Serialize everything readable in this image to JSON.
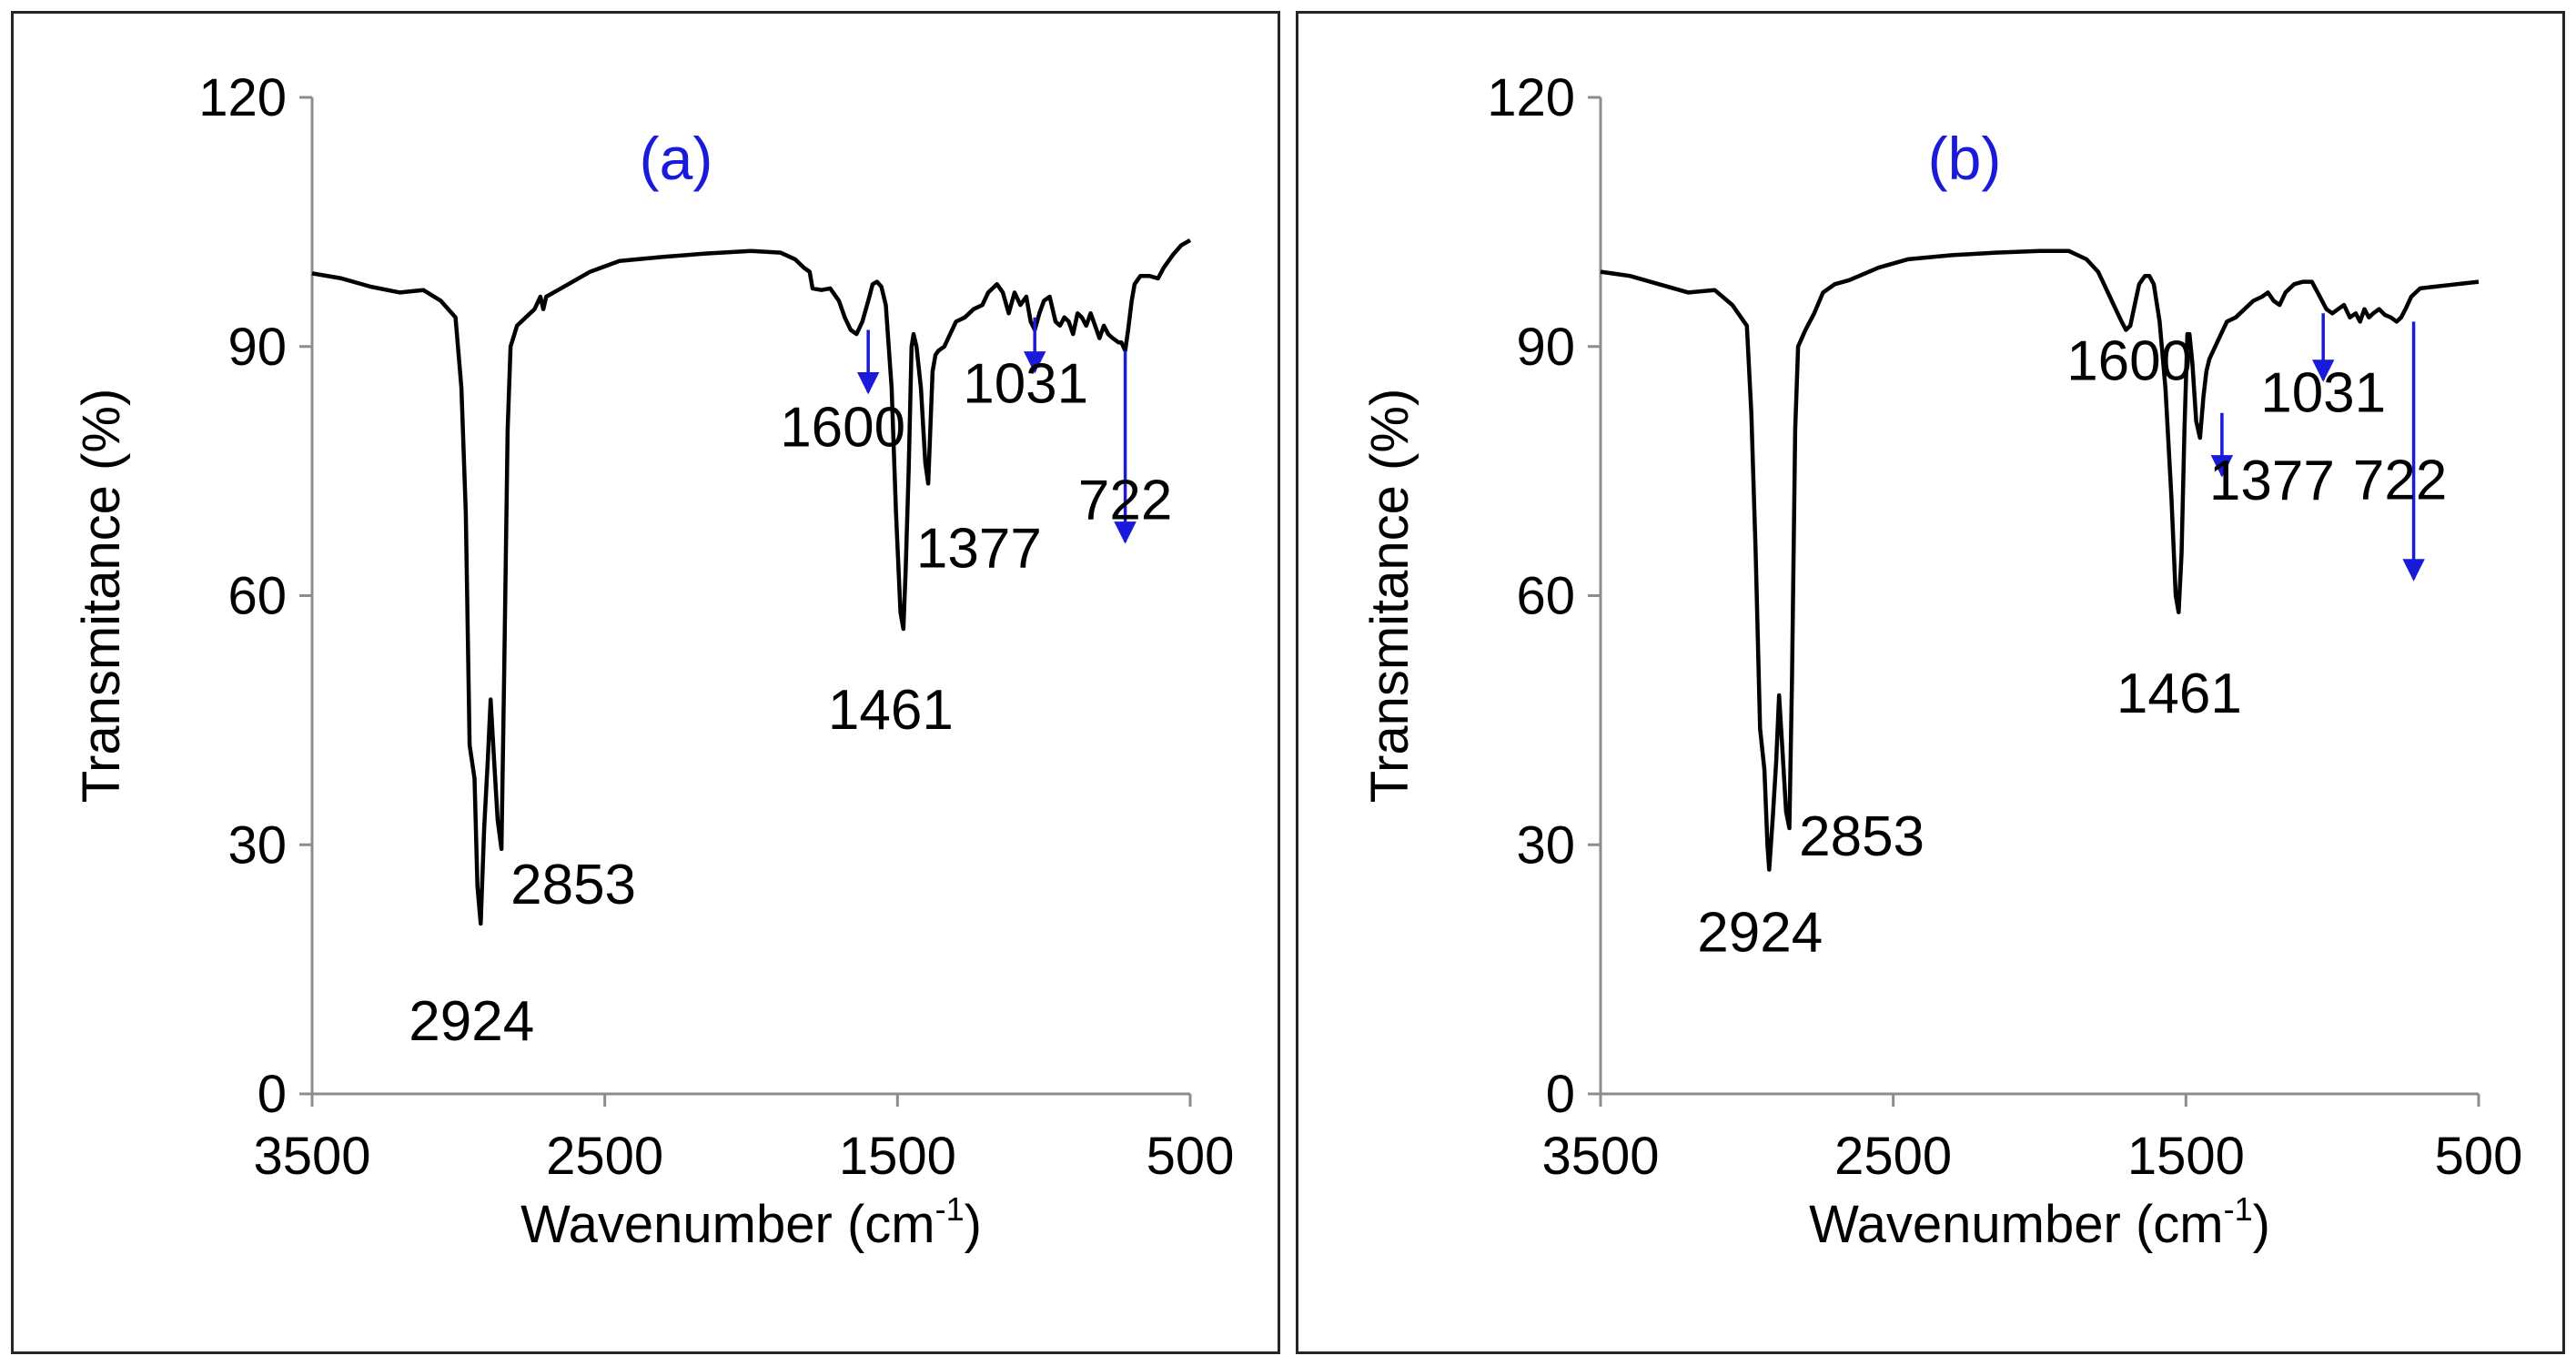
{
  "chart_data": [
    {
      "type": "line",
      "title": "(a)",
      "xlabel_main": "Wavenumber (cm",
      "xlabel_sup": "-1",
      "xlabel_end": ")",
      "ylabel": "Transmitance (%)",
      "xlim": [
        3500,
        500
      ],
      "ylim": [
        0,
        120
      ],
      "xticks": [
        "3500",
        "2500",
        "1500",
        "500"
      ],
      "yticks": [
        "0",
        "30",
        "60",
        "90",
        "120"
      ],
      "series": [
        {
          "name": "spectrum",
          "color": "#000000",
          "points": [
            [
              3500,
              98.8
            ],
            [
              3400,
              98.2
            ],
            [
              3300,
              97.2
            ],
            [
              3200,
              96.5
            ],
            [
              3120,
              96.8
            ],
            [
              3060,
              95.5
            ],
            [
              3010,
              93.5
            ],
            [
              2990,
              85
            ],
            [
              2975,
              70
            ],
            [
              2962,
              42
            ],
            [
              2945,
              38
            ],
            [
              2935,
              25
            ],
            [
              2924,
              20.5
            ],
            [
              2912,
              32
            ],
            [
              2900,
              40
            ],
            [
              2890,
              47.5
            ],
            [
              2878,
              40
            ],
            [
              2866,
              33
            ],
            [
              2853,
              29.5
            ],
            [
              2844,
              50
            ],
            [
              2832,
              80
            ],
            [
              2822,
              90
            ],
            [
              2800,
              92.5
            ],
            [
              2770,
              93.5
            ],
            [
              2740,
              94.5
            ],
            [
              2720,
              96
            ],
            [
              2710,
              94.5
            ],
            [
              2700,
              96
            ],
            [
              2650,
              97
            ],
            [
              2550,
              99
            ],
            [
              2450,
              100.3
            ],
            [
              2300,
              100.8
            ],
            [
              2150,
              101.2
            ],
            [
              2000,
              101.5
            ],
            [
              1900,
              101.3
            ],
            [
              1850,
              100.5
            ],
            [
              1820,
              99.5
            ],
            [
              1800,
              99
            ],
            [
              1790,
              97
            ],
            [
              1760,
              96.8
            ],
            [
              1730,
              97
            ],
            [
              1700,
              95.5
            ],
            [
              1680,
              93.5
            ],
            [
              1660,
              92
            ],
            [
              1640,
              91.5
            ],
            [
              1620,
              93
            ],
            [
              1600,
              95.5
            ],
            [
              1585,
              97.5
            ],
            [
              1570,
              97.8
            ],
            [
              1555,
              97.2
            ],
            [
              1540,
              95
            ],
            [
              1520,
              85
            ],
            [
              1505,
              70
            ],
            [
              1490,
              58
            ],
            [
              1480,
              56
            ],
            [
              1472,
              63
            ],
            [
              1462,
              75
            ],
            [
              1452,
              90
            ],
            [
              1445,
              91.5
            ],
            [
              1435,
              90
            ],
            [
              1420,
              85
            ],
            [
              1405,
              76
            ],
            [
              1395,
              73.5
            ],
            [
              1388,
              80
            ],
            [
              1380,
              87
            ],
            [
              1370,
              89
            ],
            [
              1360,
              89.5
            ],
            [
              1340,
              90
            ],
            [
              1320,
              91.5
            ],
            [
              1300,
              93
            ],
            [
              1270,
              93.5
            ],
            [
              1240,
              94.5
            ],
            [
              1210,
              95
            ],
            [
              1190,
              96.5
            ],
            [
              1160,
              97.5
            ],
            [
              1140,
              96.5
            ],
            [
              1120,
              94
            ],
            [
              1100,
              96.5
            ],
            [
              1080,
              95
            ],
            [
              1060,
              96
            ],
            [
              1045,
              93
            ],
            [
              1031,
              92
            ],
            [
              1015,
              94
            ],
            [
              1000,
              95.5
            ],
            [
              980,
              96
            ],
            [
              960,
              93
            ],
            [
              945,
              92.5
            ],
            [
              930,
              93.5
            ],
            [
              915,
              93
            ],
            [
              900,
              91.5
            ],
            [
              885,
              94
            ],
            [
              870,
              93.5
            ],
            [
              855,
              92.5
            ],
            [
              840,
              94
            ],
            [
              825,
              92.5
            ],
            [
              810,
              91
            ],
            [
              795,
              92.5
            ],
            [
              780,
              91.5
            ],
            [
              765,
              91
            ],
            [
              745,
              90.5
            ],
            [
              735,
              90.5
            ],
            [
              722,
              89.5
            ],
            [
              712,
              92
            ],
            [
              700,
              95.5
            ],
            [
              690,
              97.5
            ],
            [
              670,
              98.5
            ],
            [
              640,
              98.5
            ],
            [
              610,
              98.2
            ],
            [
              590,
              99.5
            ],
            [
              560,
              101
            ],
            [
              530,
              102.2
            ],
            [
              500,
              102.8
            ]
          ]
        }
      ],
      "peak_labels": [
        {
          "text": "2924",
          "x": 2924,
          "y": 20.5,
          "color": "#000000",
          "arrow": false
        },
        {
          "text": "2853",
          "x": 2853,
          "y": 29.5,
          "color": "#000000",
          "arrow": false
        },
        {
          "text": "1600",
          "x": 1600,
          "y": 95.5,
          "color": "#000000",
          "arrow": true,
          "arrow_color": "#1a1adb",
          "arrow_from": 92,
          "arrow_to": 84.5
        },
        {
          "text": "1461",
          "x": 1461,
          "y": 56,
          "color": "#000000",
          "arrow": false
        },
        {
          "text": "1377",
          "x": 1377,
          "y": 73.5,
          "color": "#000000",
          "arrow": false
        },
        {
          "text": "1031",
          "x": 1031,
          "y": 92,
          "color": "#000000",
          "arrow": true,
          "arrow_color": "#1a1adb",
          "arrow_from": 93.5,
          "arrow_to": 87
        },
        {
          "text": "722",
          "x": 722,
          "y": 89.5,
          "color": "#000000",
          "arrow": true,
          "arrow_color": "#1a1adb",
          "arrow_from": 89.5,
          "arrow_to": 66.5
        }
      ],
      "title_color": "#1a1adb"
    },
    {
      "type": "line",
      "title": "(b)",
      "xlabel_main": "Wavenumber (cm",
      "xlabel_sup": "-1",
      "xlabel_end": ")",
      "ylabel": "Transmitance (%)",
      "xlim": [
        3500,
        500
      ],
      "ylim": [
        0,
        120
      ],
      "xticks": [
        "3500",
        "2500",
        "1500",
        "500"
      ],
      "yticks": [
        "0",
        "30",
        "60",
        "90",
        "120"
      ],
      "series": [
        {
          "name": "spectrum",
          "color": "#000000",
          "points": [
            [
              3500,
              99
            ],
            [
              3400,
              98.5
            ],
            [
              3300,
              97.5
            ],
            [
              3200,
              96.5
            ],
            [
              3110,
              96.8
            ],
            [
              3050,
              95
            ],
            [
              3000,
              92.5
            ],
            [
              2985,
              82
            ],
            [
              2970,
              65
            ],
            [
              2955,
              44
            ],
            [
              2940,
              39
            ],
            [
              2930,
              30
            ],
            [
              2924,
              27
            ],
            [
              2912,
              33
            ],
            [
              2900,
              40
            ],
            [
              2890,
              48
            ],
            [
              2878,
              41
            ],
            [
              2866,
              34
            ],
            [
              2855,
              32
            ],
            [
              2846,
              50
            ],
            [
              2835,
              80
            ],
            [
              2825,
              90
            ],
            [
              2800,
              92
            ],
            [
              2770,
              94
            ],
            [
              2740,
              96.5
            ],
            [
              2700,
              97.5
            ],
            [
              2650,
              98
            ],
            [
              2550,
              99.5
            ],
            [
              2450,
              100.5
            ],
            [
              2300,
              101
            ],
            [
              2150,
              101.3
            ],
            [
              2000,
              101.5
            ],
            [
              1900,
              101.5
            ],
            [
              1840,
              100.5
            ],
            [
              1800,
              99
            ],
            [
              1780,
              97.5
            ],
            [
              1760,
              96
            ],
            [
              1740,
              94.5
            ],
            [
              1720,
              93
            ],
            [
              1705,
              92
            ],
            [
              1690,
              92.5
            ],
            [
              1675,
              95
            ],
            [
              1660,
              97.5
            ],
            [
              1640,
              98.5
            ],
            [
              1625,
              98.5
            ],
            [
              1610,
              97.5
            ],
            [
              1590,
              93
            ],
            [
              1570,
              85
            ],
            [
              1550,
              72
            ],
            [
              1535,
              60
            ],
            [
              1525,
              58
            ],
            [
              1515,
              65
            ],
            [
              1505,
              80
            ],
            [
              1495,
              91.5
            ],
            [
              1488,
              91.5
            ],
            [
              1478,
              88
            ],
            [
              1465,
              81
            ],
            [
              1452,
              79
            ],
            [
              1440,
              84
            ],
            [
              1430,
              87
            ],
            [
              1420,
              88.5
            ],
            [
              1400,
              90
            ],
            [
              1380,
              91.5
            ],
            [
              1360,
              93
            ],
            [
              1330,
              93.5
            ],
            [
              1300,
              94.5
            ],
            [
              1270,
              95.5
            ],
            [
              1240,
              96
            ],
            [
              1220,
              96.5
            ],
            [
              1200,
              95.5
            ],
            [
              1180,
              95
            ],
            [
              1160,
              96.5
            ],
            [
              1130,
              97.5
            ],
            [
              1100,
              97.8
            ],
            [
              1070,
              97.8
            ],
            [
              1050,
              96.5
            ],
            [
              1020,
              94.5
            ],
            [
              1000,
              94
            ],
            [
              980,
              94.5
            ],
            [
              960,
              95
            ],
            [
              940,
              93.5
            ],
            [
              920,
              94
            ],
            [
              905,
              93
            ],
            [
              890,
              94.5
            ],
            [
              875,
              93.5
            ],
            [
              860,
              94
            ],
            [
              840,
              94.5
            ],
            [
              820,
              93.8
            ],
            [
              800,
              93.5
            ],
            [
              780,
              93
            ],
            [
              765,
              93.5
            ],
            [
              750,
              94.5
            ],
            [
              730,
              96
            ],
            [
              700,
              97
            ],
            [
              650,
              97.2
            ],
            [
              600,
              97.4
            ],
            [
              550,
              97.6
            ],
            [
              500,
              97.8
            ]
          ]
        }
      ],
      "peak_labels": [
        {
          "text": "2924",
          "x": 2924,
          "y": 27,
          "color": "#000000",
          "arrow": false
        },
        {
          "text": "2853",
          "x": 2853,
          "y": 32,
          "color": "#000000",
          "arrow": false
        },
        {
          "text": "1600",
          "x": 1600,
          "y": 92,
          "color": "#000000",
          "arrow": false
        },
        {
          "text": "1461",
          "x": 1461,
          "y": 58,
          "color": "#000000",
          "arrow": false
        },
        {
          "text": "1377",
          "x": 1377,
          "y": 79,
          "color": "#000000",
          "arrow": true,
          "arrow_color": "#1a1adb",
          "arrow_from": 82,
          "arrow_to": 74.5
        },
        {
          "text": "1031",
          "x": 1031,
          "y": 94,
          "color": "#000000",
          "arrow": true,
          "arrow_color": "#1a1adb",
          "arrow_from": 94,
          "arrow_to": 86
        },
        {
          "text": "722",
          "x": 722,
          "y": 93,
          "color": "#000000",
          "arrow": true,
          "arrow_color": "#1a1adb",
          "arrow_from": 93,
          "arrow_to": 62
        }
      ],
      "title_color": "#1a1adb"
    }
  ]
}
